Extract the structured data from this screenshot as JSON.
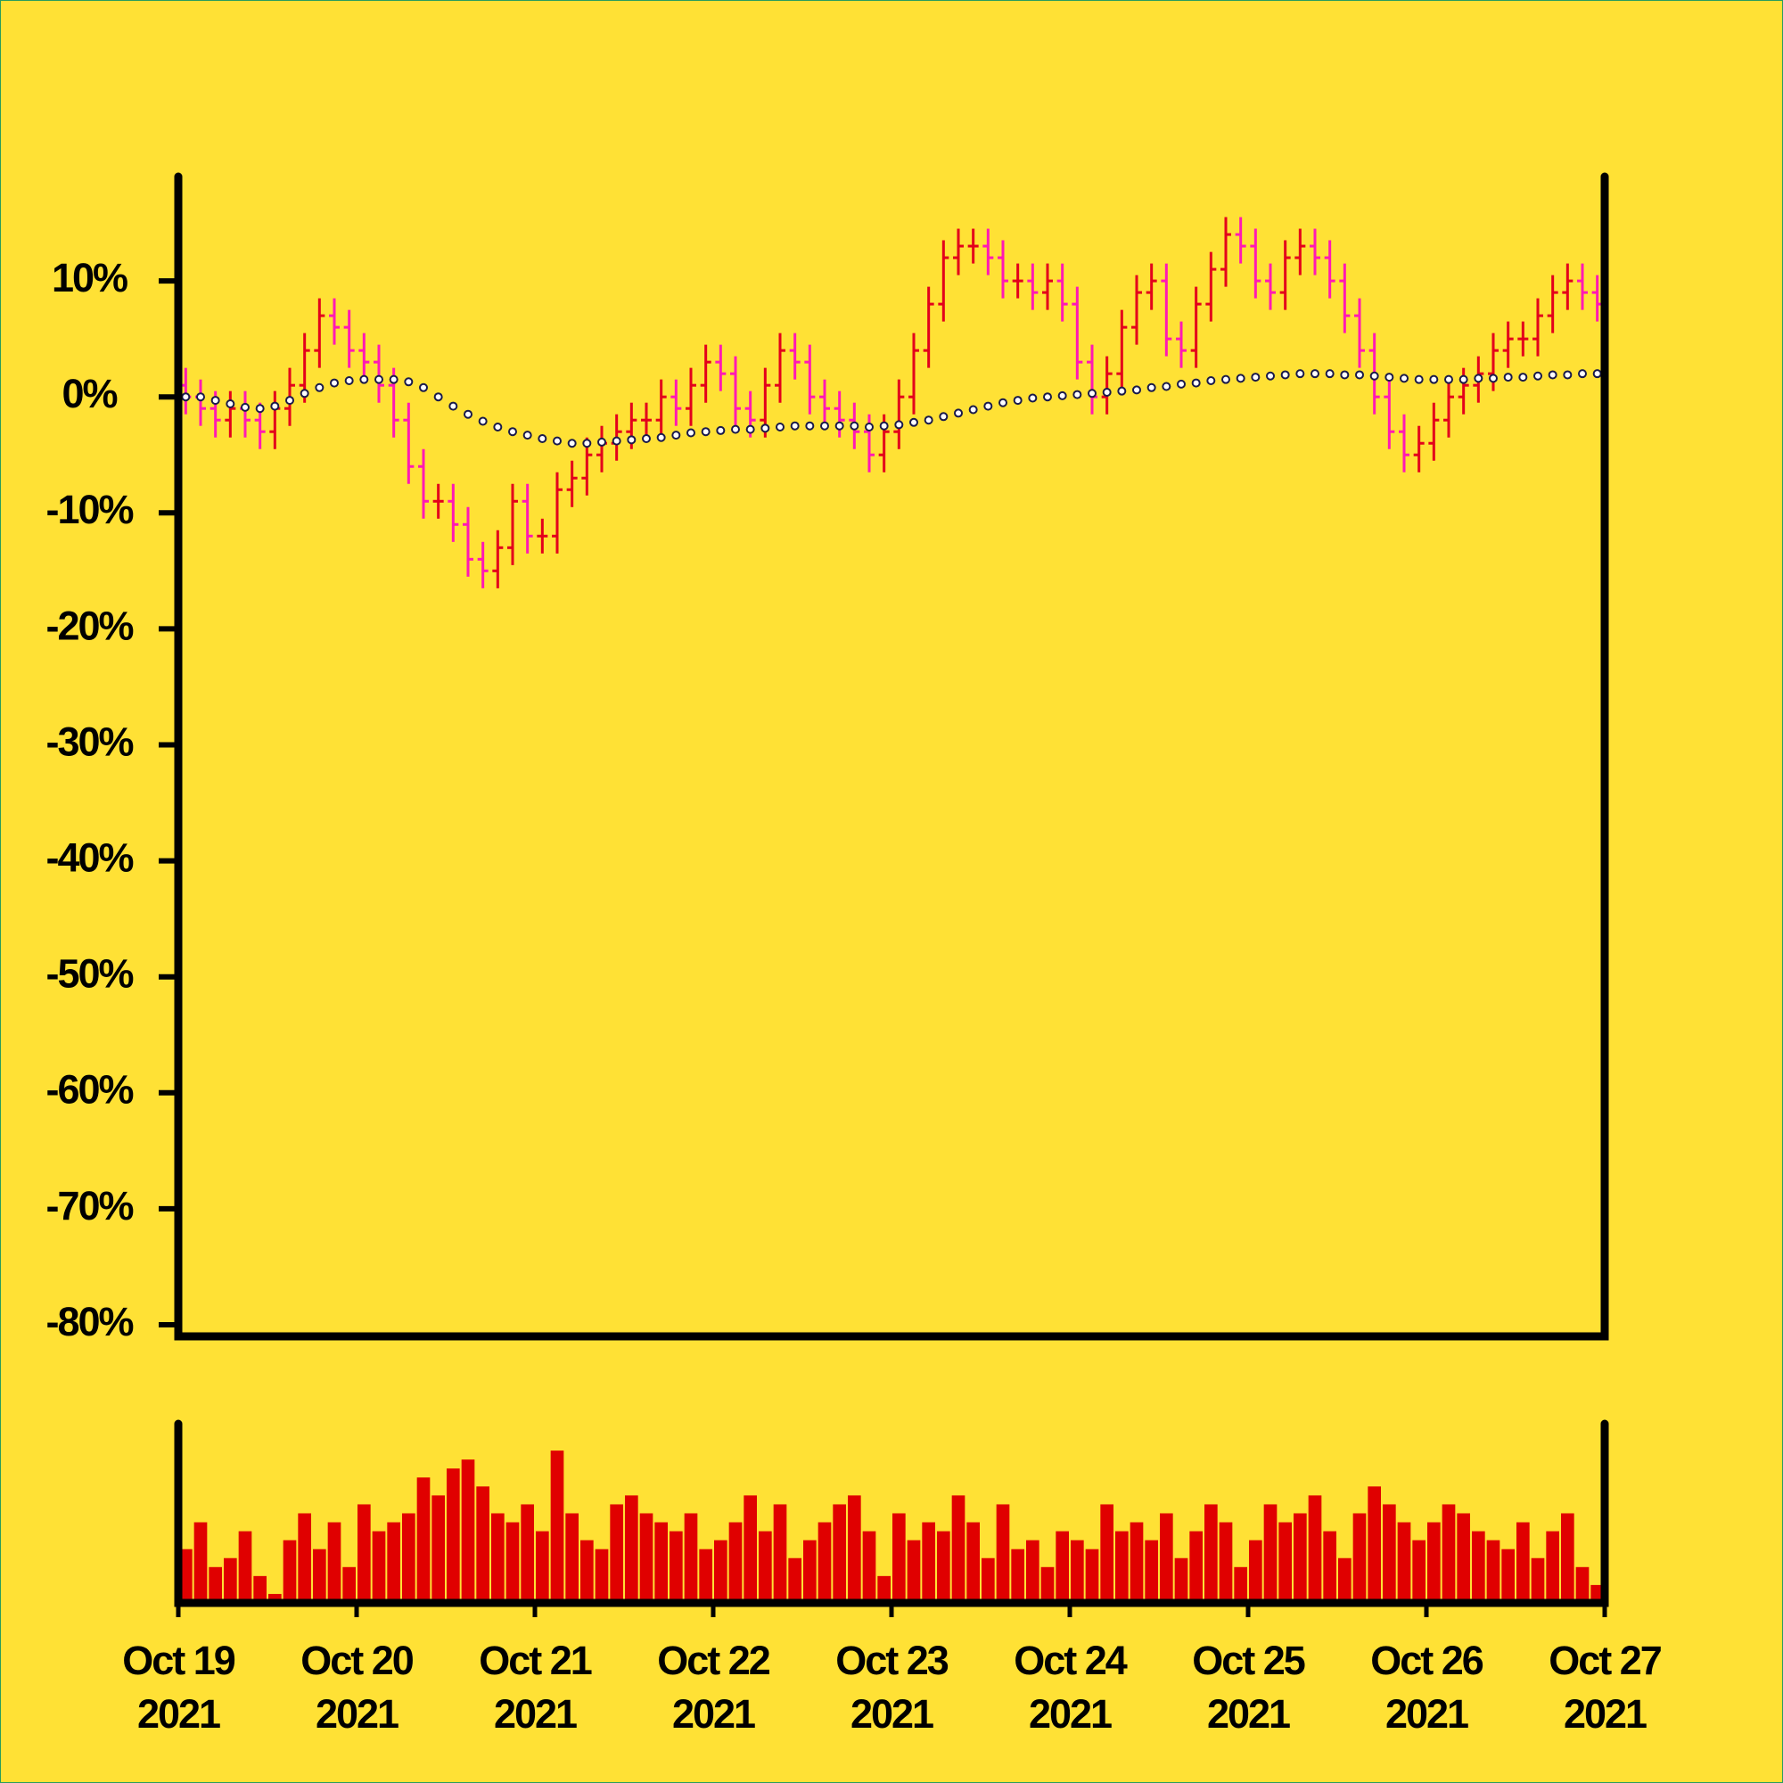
{
  "chart_data": {
    "type": "ohlc",
    "up_color": "#e3001b",
    "down_color": "#ff19b4",
    "open": [
      1,
      0,
      -1,
      -2,
      -1,
      -2,
      -3,
      -1,
      1,
      4,
      7,
      6,
      4,
      3,
      1,
      -2,
      -6,
      -9,
      -9,
      -11,
      -14,
      -15,
      -13,
      -9,
      -12,
      -12,
      -8,
      -7,
      -5,
      -4,
      -3,
      -2,
      -2,
      0,
      -1,
      1,
      3,
      2,
      -1,
      -2,
      1,
      4,
      3,
      0,
      -1,
      -2,
      -3,
      -5,
      -3,
      0,
      4,
      8,
      12,
      13,
      13,
      12,
      10,
      10,
      9,
      10,
      8,
      3,
      0,
      2,
      6,
      9,
      10,
      5,
      4,
      8,
      11,
      14,
      13,
      10,
      9,
      12,
      13,
      12,
      10,
      7,
      4,
      0,
      -3,
      -5,
      -4,
      -2,
      0,
      1,
      2,
      4,
      5,
      5,
      7,
      9,
      10,
      9
    ],
    "high": [
      2.5,
      1.5,
      0.5,
      0.5,
      0.5,
      -0.5,
      0.5,
      2.5,
      5.5,
      8.5,
      8.5,
      7.5,
      5.5,
      4.5,
      2.5,
      -0.5,
      -4.5,
      -7.5,
      -7.5,
      -9.5,
      -12.5,
      -11.5,
      -7.5,
      -7.5,
      -10.5,
      -6.5,
      -5.5,
      -3.5,
      -2.5,
      -1.5,
      -0.5,
      -0.5,
      1.5,
      1.5,
      2.5,
      4.5,
      4.5,
      3.5,
      0.5,
      2.5,
      5.5,
      5.5,
      4.5,
      1.5,
      0.5,
      -0.5,
      -1.5,
      -1.5,
      1.5,
      5.5,
      9.5,
      13.5,
      14.5,
      14.5,
      14.5,
      13.5,
      11.5,
      11.5,
      11.5,
      11.5,
      9.5,
      4.5,
      3.5,
      7.5,
      10.5,
      11.5,
      11.5,
      6.5,
      9.5,
      12.5,
      15.5,
      15.5,
      14.5,
      11.5,
      13.5,
      14.5,
      14.5,
      13.5,
      11.5,
      8.5,
      5.5,
      1.5,
      -1.5,
      -2.5,
      -0.5,
      1.5,
      2.5,
      3.5,
      5.5,
      6.5,
      6.5,
      8.5,
      10.5,
      11.5,
      11.5,
      10.5
    ],
    "low": [
      -1.5,
      -2.5,
      -3.5,
      -3.5,
      -3.5,
      -4.5,
      -4.5,
      -2.5,
      -0.5,
      2.5,
      4.5,
      2.5,
      1.5,
      -0.5,
      -3.5,
      -7.5,
      -10.5,
      -10.5,
      -12.5,
      -15.5,
      -16.5,
      -16.5,
      -14.5,
      -13.5,
      -13.5,
      -13.5,
      -9.5,
      -8.5,
      -6.5,
      -5.5,
      -4.5,
      -3.5,
      -3.5,
      -2.5,
      -2.5,
      -0.5,
      0.5,
      -2.5,
      -3.5,
      -3.5,
      -0.5,
      1.5,
      -1.5,
      -2.5,
      -3.5,
      -4.5,
      -6.5,
      -6.5,
      -4.5,
      -1.5,
      2.5,
      6.5,
      10.5,
      11.5,
      10.5,
      8.5,
      8.5,
      7.5,
      7.5,
      6.5,
      1.5,
      -1.5,
      -1.5,
      0.5,
      4.5,
      7.5,
      3.5,
      2.5,
      2.5,
      6.5,
      9.5,
      11.5,
      8.5,
      7.5,
      7.5,
      10.5,
      10.5,
      8.5,
      5.5,
      2.5,
      -1.5,
      -4.5,
      -6.5,
      -6.5,
      -5.5,
      -3.5,
      -1.5,
      -0.5,
      0.5,
      2.5,
      3.5,
      3.5,
      5.5,
      7.5,
      7.5,
      6.5
    ],
    "close": [
      0,
      -1,
      -2,
      -1,
      -2,
      -3,
      -1,
      1,
      4,
      7,
      6,
      4,
      3,
      1,
      -2,
      -6,
      -9,
      -9,
      -11,
      -14,
      -15,
      -13,
      -9,
      -12,
      -12,
      -8,
      -7,
      -5,
      -4,
      -3,
      -2,
      -2,
      0,
      -1,
      1,
      3,
      2,
      -1,
      -2,
      1,
      4,
      3,
      0,
      -1,
      -2,
      -3,
      -5,
      -3,
      0,
      4,
      8,
      12,
      13,
      13,
      12,
      10,
      10,
      9,
      10,
      8,
      3,
      0,
      2,
      6,
      9,
      10,
      5,
      4,
      8,
      11,
      14,
      13,
      10,
      9,
      12,
      13,
      12,
      10,
      7,
      4,
      0,
      -3,
      -5,
      -4,
      -2,
      0,
      1,
      2,
      4,
      5,
      5,
      7,
      9,
      10,
      9,
      8
    ],
    "ma": {
      "color": "#1a1a4a",
      "values": [
        0,
        0,
        -0.3,
        -0.6,
        -0.9,
        -1,
        -0.8,
        -0.3,
        0.3,
        0.8,
        1.2,
        1.4,
        1.5,
        1.5,
        1.5,
        1.3,
        0.8,
        0,
        -0.8,
        -1.5,
        -2.1,
        -2.6,
        -3,
        -3.3,
        -3.6,
        -3.8,
        -4,
        -4,
        -3.9,
        -3.8,
        -3.7,
        -3.6,
        -3.5,
        -3.3,
        -3.1,
        -3,
        -2.9,
        -2.8,
        -2.8,
        -2.7,
        -2.6,
        -2.5,
        -2.5,
        -2.5,
        -2.5,
        -2.5,
        -2.6,
        -2.5,
        -2.4,
        -2.2,
        -2,
        -1.7,
        -1.4,
        -1.1,
        -0.8,
        -0.5,
        -0.3,
        -0.1,
        0,
        0.1,
        0.2,
        0.3,
        0.4,
        0.5,
        0.6,
        0.8,
        0.9,
        1.1,
        1.2,
        1.4,
        1.5,
        1.6,
        1.7,
        1.8,
        1.9,
        2,
        2,
        2,
        1.9,
        1.9,
        1.8,
        1.7,
        1.6,
        1.5,
        1.5,
        1.5,
        1.5,
        1.6,
        1.6,
        1.7,
        1.7,
        1.8,
        1.9,
        1.9,
        2,
        2
      ]
    },
    "volume": {
      "color": "#e00000",
      "ylim": [
        0,
        100
      ],
      "values": [
        30,
        45,
        20,
        25,
        40,
        15,
        5,
        35,
        50,
        30,
        45,
        20,
        55,
        40,
        45,
        50,
        70,
        60,
        75,
        80,
        65,
        50,
        45,
        55,
        40,
        85,
        50,
        35,
        30,
        55,
        60,
        50,
        45,
        40,
        50,
        30,
        35,
        45,
        60,
        40,
        55,
        25,
        35,
        45,
        55,
        60,
        40,
        15,
        50,
        35,
        45,
        40,
        60,
        45,
        25,
        55,
        30,
        35,
        20,
        40,
        35,
        30,
        55,
        40,
        45,
        35,
        50,
        25,
        40,
        55,
        45,
        20,
        35,
        55,
        45,
        50,
        60,
        40,
        25,
        50,
        65,
        55,
        45,
        35,
        45,
        55,
        50,
        40,
        35,
        30,
        45,
        25,
        40,
        50,
        20,
        10
      ]
    },
    "ylim": [
      -81,
      19
    ],
    "yticks": [
      {
        "value": 10,
        "label": "10%"
      },
      {
        "value": 0,
        "label": "0%"
      },
      {
        "value": -10,
        "label": "-10%"
      },
      {
        "value": -20,
        "label": "-20%"
      },
      {
        "value": -30,
        "label": "-30%"
      },
      {
        "value": -40,
        "label": "-40%"
      },
      {
        "value": -50,
        "label": "-50%"
      },
      {
        "value": -60,
        "label": "-60%"
      },
      {
        "value": -70,
        "label": "-70%"
      },
      {
        "value": -80,
        "label": "-80%"
      }
    ],
    "xlim": [
      0,
      96
    ],
    "xticks": [
      {
        "value": 0,
        "label": [
          "Oct 19",
          "2021"
        ]
      },
      {
        "value": 12,
        "label": [
          "Oct 20",
          "2021"
        ]
      },
      {
        "value": 24,
        "label": [
          "Oct 21",
          "2021"
        ]
      },
      {
        "value": 36,
        "label": [
          "Oct 22",
          "2021"
        ]
      },
      {
        "value": 48,
        "label": [
          "Oct 23",
          "2021"
        ]
      },
      {
        "value": 60,
        "label": [
          "Oct 24",
          "2021"
        ]
      },
      {
        "value": 72,
        "label": [
          "Oct 25",
          "2021"
        ]
      },
      {
        "value": 84,
        "label": [
          "Oct 26",
          "2021"
        ]
      },
      {
        "value": 96,
        "label": [
          "Oct 27",
          "2021"
        ]
      }
    ]
  }
}
